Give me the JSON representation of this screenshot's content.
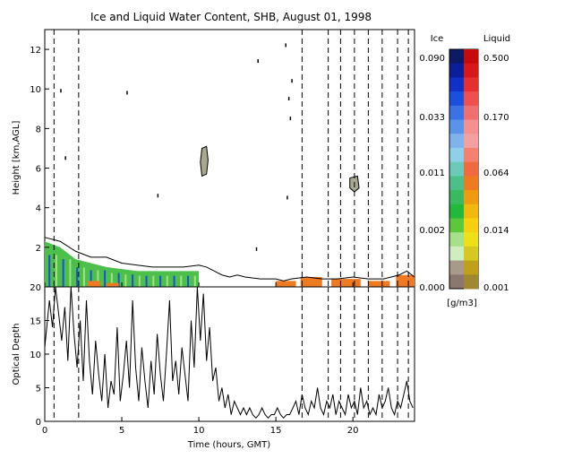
{
  "title": "Ice and Liquid Water Content, SHB, August 01, 1998",
  "colorbar": {
    "ice_label": "Ice",
    "liquid_label": "Liquid",
    "units": "[g/m3]",
    "ice_ticks": [
      "0.090",
      "0.033",
      "0.011",
      "0.002",
      "0.000"
    ],
    "liquid_ticks": [
      "0.500",
      "0.170",
      "0.064",
      "0.014",
      "0.001"
    ],
    "ice_colors": [
      "#0d1a66",
      "#0a1f99",
      "#1030c8",
      "#1a50dd",
      "#3a73e6",
      "#5a93ea",
      "#7fb3ee",
      "#8fd0e8",
      "#6ccab8",
      "#4cc088",
      "#3aba60",
      "#22b83a",
      "#5ac83a",
      "#a6e08a",
      "#cfeec0",
      "#a89a88",
      "#8a7870"
    ],
    "liquid_colors": [
      "#c80a0a",
      "#d81818",
      "#e63030",
      "#ee5050",
      "#f07070",
      "#f49090",
      "#f4a0a0",
      "#f48070",
      "#f06a40",
      "#ee7a22",
      "#f09a10",
      "#f2b810",
      "#f4d010",
      "#eee018",
      "#d6c820",
      "#c0a018",
      "#a08830"
    ]
  },
  "chart_data": [
    {
      "type": "heatmap",
      "title": "Ice and Liquid Water Content, SHB, August 01, 1998",
      "xlabel": "",
      "ylabel": "Height [km,AGL]",
      "xlim": [
        0,
        24
      ],
      "ylim": [
        0,
        13
      ],
      "x_ticks": [
        0,
        5,
        10,
        15,
        20
      ],
      "y_ticks": [
        2,
        4,
        6,
        8,
        10,
        12
      ],
      "dashed_times": [
        0.6,
        2.2,
        16.7,
        18.4,
        19.2,
        20.1,
        21.0,
        21.9,
        22.9,
        23.6
      ],
      "outline": [
        [
          0,
          2.5
        ],
        [
          1,
          2.3
        ],
        [
          2,
          1.8
        ],
        [
          3,
          1.5
        ],
        [
          4,
          1.5
        ],
        [
          5,
          1.2
        ],
        [
          6,
          1.1
        ],
        [
          7,
          1.0
        ],
        [
          8,
          1.0
        ],
        [
          9,
          1.0
        ],
        [
          10,
          1.1
        ],
        [
          10.5,
          1.0
        ],
        [
          11,
          0.8
        ],
        [
          11.5,
          0.6
        ],
        [
          12,
          0.5
        ],
        [
          12.5,
          0.6
        ],
        [
          13,
          0.5
        ],
        [
          14,
          0.4
        ],
        [
          15,
          0.4
        ],
        [
          15.5,
          0.3
        ],
        [
          16,
          0.4
        ],
        [
          17,
          0.5
        ],
        [
          18,
          0.4
        ],
        [
          19,
          0.4
        ],
        [
          20,
          0.5
        ],
        [
          21,
          0.4
        ],
        [
          22,
          0.4
        ],
        [
          23,
          0.6
        ],
        [
          23.5,
          0.8
        ],
        [
          24,
          0.5
        ]
      ],
      "ice_region": [
        [
          0,
          2.3
        ],
        [
          1,
          2.0
        ],
        [
          2,
          1.4
        ],
        [
          3,
          1.2
        ],
        [
          4,
          1.0
        ],
        [
          5,
          0.9
        ],
        [
          6,
          0.8
        ],
        [
          7,
          0.8
        ],
        [
          8,
          0.8
        ],
        [
          9,
          0.8
        ],
        [
          10,
          0.8
        ]
      ],
      "liquid_patches": [
        [
          [
            2.8,
            0
          ],
          [
            2.8,
            0.3
          ],
          [
            3.6,
            0.3
          ],
          [
            3.6,
            0
          ]
        ],
        [
          [
            4.0,
            0
          ],
          [
            4.0,
            0.2
          ],
          [
            4.8,
            0.2
          ],
          [
            4.8,
            0
          ]
        ],
        [
          [
            15.0,
            0
          ],
          [
            15.0,
            0.3
          ],
          [
            16.3,
            0.3
          ],
          [
            16.3,
            0
          ]
        ],
        [
          [
            16.6,
            0
          ],
          [
            16.6,
            0.5
          ],
          [
            18.0,
            0.5
          ],
          [
            18.0,
            0
          ]
        ],
        [
          [
            18.6,
            0
          ],
          [
            18.6,
            0.4
          ],
          [
            20.5,
            0.4
          ],
          [
            20.5,
            0
          ]
        ],
        [
          [
            21.0,
            0
          ],
          [
            21.0,
            0.3
          ],
          [
            22.4,
            0.3
          ],
          [
            22.4,
            0
          ]
        ],
        [
          [
            22.8,
            0
          ],
          [
            22.8,
            0.6
          ],
          [
            24.0,
            0.6
          ],
          [
            24.0,
            0
          ]
        ]
      ],
      "ice_clouds": [
        [
          [
            10.2,
            7.0
          ],
          [
            10.5,
            7.1
          ],
          [
            10.6,
            6.4
          ],
          [
            10.5,
            5.7
          ],
          [
            10.2,
            5.6
          ],
          [
            10.1,
            6.3
          ]
        ],
        [
          [
            19.8,
            5.5
          ],
          [
            20.3,
            5.6
          ],
          [
            20.4,
            5.0
          ],
          [
            20.1,
            4.8
          ],
          [
            19.8,
            5.0
          ]
        ]
      ],
      "specks": [
        [
          1.0,
          10.0
        ],
        [
          1.3,
          6.6
        ],
        [
          5.3,
          9.9
        ],
        [
          7.3,
          4.7
        ],
        [
          13.8,
          11.5
        ],
        [
          15.6,
          12.3
        ],
        [
          15.8,
          9.6
        ],
        [
          15.9,
          8.6
        ],
        [
          15.7,
          4.6
        ],
        [
          13.7,
          2.0
        ],
        [
          16.0,
          10.5
        ]
      ]
    },
    {
      "type": "line",
      "title": "",
      "xlabel": "Time (hours, GMT)",
      "ylabel": "Optical Depth",
      "xlim": [
        0,
        24
      ],
      "ylim": [
        0,
        20
      ],
      "x_ticks": [
        0,
        5,
        10,
        15,
        20
      ],
      "y_ticks": [
        0,
        5,
        10,
        15,
        20
      ],
      "dashed_times": [
        0.6,
        2.2,
        16.7,
        18.4,
        19.2,
        20.1,
        21.0,
        21.9,
        22.9,
        23.6
      ],
      "x": [
        0,
        0.3,
        0.5,
        0.7,
        0.9,
        1.1,
        1.3,
        1.5,
        1.7,
        1.9,
        2.1,
        2.3,
        2.5,
        2.7,
        2.9,
        3.1,
        3.3,
        3.5,
        3.7,
        3.9,
        4.1,
        4.3,
        4.5,
        4.7,
        4.9,
        5.1,
        5.3,
        5.5,
        5.7,
        5.9,
        6.1,
        6.3,
        6.5,
        6.7,
        6.9,
        7.1,
        7.3,
        7.5,
        7.7,
        7.9,
        8.1,
        8.3,
        8.5,
        8.7,
        8.9,
        9.1,
        9.3,
        9.5,
        9.7,
        9.9,
        10.1,
        10.3,
        10.5,
        10.7,
        10.9,
        11.1,
        11.3,
        11.5,
        11.7,
        11.9,
        12.1,
        12.3,
        12.5,
        12.7,
        12.9,
        13.1,
        13.3,
        13.5,
        13.7,
        13.9,
        14.1,
        14.3,
        14.5,
        14.7,
        14.9,
        15.1,
        15.3,
        15.5,
        15.7,
        15.9,
        16.1,
        16.3,
        16.5,
        16.7,
        16.9,
        17.1,
        17.3,
        17.5,
        17.7,
        17.9,
        18.1,
        18.3,
        18.5,
        18.7,
        18.9,
        19.1,
        19.3,
        19.5,
        19.7,
        19.9,
        20.1,
        20.3,
        20.5,
        20.7,
        20.9,
        21.1,
        21.3,
        21.5,
        21.7,
        21.9,
        22.1,
        22.3,
        22.5,
        22.7,
        22.9,
        23.1,
        23.3,
        23.5,
        23.7,
        23.9
      ],
      "values": [
        11,
        18,
        14,
        20,
        16,
        12,
        17,
        9,
        20,
        13,
        8,
        15,
        6,
        18,
        9,
        4,
        12,
        7,
        3,
        10,
        2,
        6,
        4,
        14,
        3,
        7,
        12,
        5,
        18,
        8,
        3,
        11,
        6,
        2,
        9,
        4,
        13,
        7,
        3,
        10,
        18,
        6,
        9,
        4,
        11,
        7,
        3,
        15,
        8,
        20,
        12,
        19,
        9,
        14,
        6,
        8,
        3,
        5,
        2,
        4,
        1,
        3,
        2,
        1,
        2,
        1,
        2,
        1,
        0.5,
        1,
        2,
        1,
        0.5,
        1,
        1,
        2,
        1,
        0.5,
        1,
        1,
        2,
        3,
        1,
        4,
        2,
        1,
        3,
        2,
        5,
        2,
        1,
        3,
        2,
        4,
        1,
        3,
        2,
        1,
        4,
        2,
        3,
        1,
        5,
        2,
        3,
        1,
        2,
        1,
        4,
        2,
        3,
        5,
        2,
        1,
        3,
        2,
        4,
        6,
        3,
        2
      ]
    }
  ]
}
